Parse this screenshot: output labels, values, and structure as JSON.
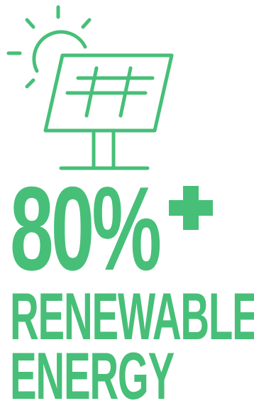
{
  "colors": {
    "accent": "#47bf78",
    "background": "#ffffff"
  },
  "icon": "solar-panel-with-sun-icon",
  "stat": {
    "value": "80%",
    "suffix": "+"
  },
  "label": {
    "line1": "RENEWABLE",
    "line2": "ENERGY"
  }
}
